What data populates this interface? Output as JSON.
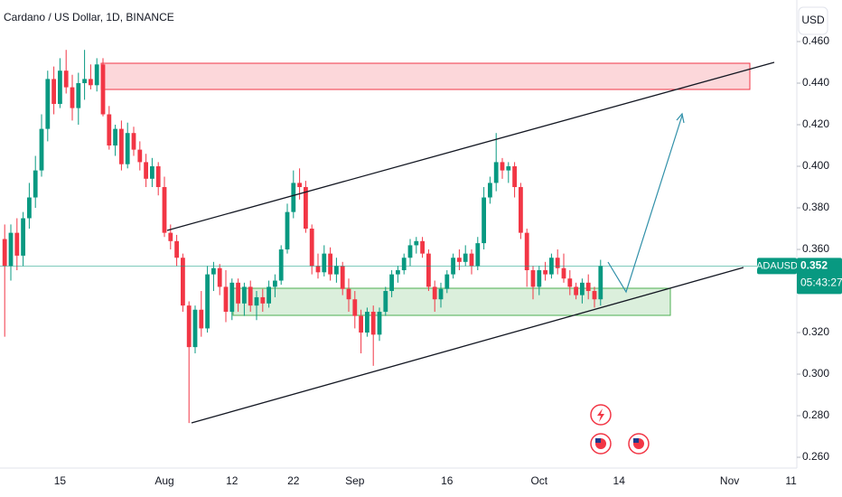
{
  "chart_data": {
    "type": "candlestick",
    "title": "Cardano / US Dollar, 1D, BINANCE",
    "currency": "USD",
    "countdown": "05:43:27",
    "categories": [
      null,
      null,
      null,
      null,
      null,
      null,
      null,
      null,
      null,
      "15",
      null,
      null,
      null,
      null,
      null,
      null,
      null,
      null,
      null,
      null,
      null,
      null,
      null,
      null,
      null,
      null,
      "Aug",
      null,
      null,
      null,
      null,
      null,
      null,
      null,
      null,
      null,
      null,
      "12",
      null,
      null,
      null,
      null,
      null,
      null,
      null,
      null,
      null,
      "22",
      null,
      null,
      null,
      null,
      null,
      null,
      null,
      null,
      null,
      "Sep",
      null,
      null,
      null,
      null,
      null,
      null,
      null,
      null,
      null,
      null,
      null,
      null,
      null,
      null,
      "16",
      null,
      null,
      null,
      null,
      null,
      null,
      null,
      null,
      null,
      null,
      null,
      null,
      null,
      null,
      "Oct",
      null,
      null,
      null,
      null,
      null,
      null,
      null,
      null,
      null,
      null,
      null,
      null,
      "14",
      null,
      null,
      null,
      null,
      null,
      null,
      null,
      null,
      null,
      null,
      null,
      null,
      null,
      null,
      null,
      null,
      null,
      "Nov",
      null,
      null,
      null,
      null,
      null,
      null,
      null,
      null,
      null,
      "11",
      null
    ],
    "series": [
      {
        "name": "ADAUSD",
        "up_color": "#089981",
        "down_color": "#f23645",
        "open": [
          0.365,
          0.352,
          0.368,
          0.357,
          0.375,
          0.385,
          0.398,
          0.418,
          0.442,
          0.43,
          0.446,
          0.438,
          0.428,
          0.44,
          0.442,
          0.439,
          0.449,
          0.425,
          0.41,
          0.418,
          0.401,
          0.416,
          0.408,
          0.402,
          0.394,
          0.4,
          0.39,
          0.368,
          0.364,
          0.356,
          0.333,
          0.313,
          0.331,
          0.322,
          0.348,
          0.351,
          0.342,
          0.33,
          0.344,
          0.334,
          0.342,
          0.333,
          0.337,
          0.334,
          0.342,
          0.345,
          0.36,
          0.378,
          0.392,
          0.39,
          0.37,
          0.352,
          0.349,
          0.358,
          0.348,
          0.352,
          0.341,
          0.336,
          0.328,
          0.32,
          0.33,
          0.319,
          0.33,
          0.34,
          0.348,
          0.35,
          0.356,
          0.362,
          0.364,
          0.358,
          0.342,
          0.336,
          0.341,
          0.348,
          0.356,
          0.354,
          0.358,
          0.352,
          0.363,
          0.385,
          0.392,
          0.402,
          0.398,
          0.4,
          0.39,
          0.368,
          0.35,
          0.342,
          0.35,
          0.348,
          0.356,
          0.351,
          0.346,
          0.342,
          0.338,
          0.344,
          0.34,
          0.336,
          null,
          null,
          null,
          null,
          null,
          null,
          null,
          null,
          null,
          null,
          null,
          null,
          null,
          null,
          null,
          null,
          null,
          null,
          null,
          null,
          null,
          null,
          null,
          null,
          null,
          null,
          null,
          null,
          null,
          null,
          null,
          null
        ],
        "high": [
          0.372,
          0.372,
          0.375,
          0.378,
          0.392,
          0.405,
          0.425,
          0.446,
          0.448,
          0.452,
          0.456,
          0.444,
          0.445,
          0.456,
          0.449,
          0.452,
          0.452,
          0.429,
          0.42,
          0.422,
          0.421,
          0.419,
          0.412,
          0.406,
          0.404,
          0.402,
          0.395,
          0.372,
          0.367,
          0.358,
          0.335,
          0.333,
          0.34,
          0.352,
          0.354,
          0.353,
          0.35,
          0.346,
          0.346,
          0.344,
          0.345,
          0.34,
          0.341,
          0.345,
          0.348,
          0.362,
          0.382,
          0.398,
          0.399,
          0.393,
          0.372,
          0.358,
          0.362,
          0.361,
          0.356,
          0.354,
          0.346,
          0.34,
          0.331,
          0.332,
          0.333,
          0.332,
          0.342,
          0.35,
          0.352,
          0.358,
          0.365,
          0.366,
          0.366,
          0.36,
          0.345,
          0.344,
          0.35,
          0.358,
          0.36,
          0.362,
          0.36,
          0.366,
          0.39,
          0.395,
          0.416,
          0.404,
          0.402,
          0.402,
          0.392,
          0.37,
          0.352,
          0.352,
          0.354,
          0.358,
          0.36,
          0.358,
          0.35,
          0.344,
          0.346,
          0.348,
          0.342,
          0.355,
          null,
          null,
          null,
          null,
          null,
          null,
          null,
          null,
          null,
          null,
          null,
          null,
          null,
          null,
          null,
          null,
          null,
          null,
          null,
          null,
          null,
          null,
          null,
          null,
          null,
          null,
          null,
          null,
          null,
          null,
          null,
          null
        ],
        "low": [
          0.318,
          0.345,
          0.35,
          0.352,
          0.37,
          0.38,
          0.395,
          0.412,
          0.425,
          0.428,
          0.435,
          0.422,
          0.42,
          0.432,
          0.437,
          0.436,
          0.424,
          0.408,
          0.405,
          0.398,
          0.399,
          0.405,
          0.398,
          0.39,
          0.39,
          0.386,
          0.366,
          0.36,
          0.352,
          0.33,
          0.2765,
          0.31,
          0.318,
          0.32,
          0.34,
          0.338,
          0.325,
          0.326,
          0.33,
          0.328,
          0.33,
          0.326,
          0.33,
          0.332,
          0.337,
          0.343,
          0.358,
          0.375,
          0.384,
          0.368,
          0.348,
          0.346,
          0.347,
          0.345,
          0.344,
          0.338,
          0.33,
          0.322,
          0.31,
          0.318,
          0.304,
          0.316,
          0.328,
          0.337,
          0.344,
          0.348,
          0.352,
          0.358,
          0.356,
          0.34,
          0.33,
          0.332,
          0.339,
          0.346,
          0.35,
          0.352,
          0.348,
          0.35,
          0.36,
          0.382,
          0.388,
          0.394,
          0.392,
          0.385,
          0.365,
          0.342,
          0.336,
          0.338,
          0.345,
          0.346,
          0.348,
          0.344,
          0.338,
          0.336,
          0.334,
          0.336,
          0.332,
          0.333,
          null,
          null,
          null,
          null,
          null,
          null,
          null,
          null,
          null,
          null,
          null,
          null,
          null,
          null,
          null,
          null,
          null,
          null,
          null,
          null,
          null,
          null,
          null,
          null,
          null,
          null,
          null,
          null,
          null,
          null,
          null,
          null
        ],
        "close": [
          0.352,
          0.368,
          0.357,
          0.375,
          0.385,
          0.398,
          0.418,
          0.442,
          0.43,
          0.446,
          0.438,
          0.428,
          0.44,
          0.442,
          0.439,
          0.449,
          0.425,
          0.41,
          0.418,
          0.401,
          0.416,
          0.408,
          0.402,
          0.394,
          0.4,
          0.39,
          0.368,
          0.364,
          0.356,
          0.333,
          0.313,
          0.331,
          0.322,
          0.348,
          0.351,
          0.342,
          0.33,
          0.344,
          0.334,
          0.342,
          0.333,
          0.337,
          0.334,
          0.342,
          0.345,
          0.36,
          0.378,
          0.392,
          0.39,
          0.37,
          0.352,
          0.349,
          0.358,
          0.348,
          0.352,
          0.341,
          0.336,
          0.328,
          0.32,
          0.33,
          0.319,
          0.33,
          0.34,
          0.348,
          0.35,
          0.356,
          0.362,
          0.364,
          0.358,
          0.342,
          0.336,
          0.341,
          0.348,
          0.356,
          0.354,
          0.358,
          0.352,
          0.363,
          0.385,
          0.392,
          0.402,
          0.398,
          0.4,
          0.39,
          0.368,
          0.35,
          0.342,
          0.35,
          0.348,
          0.356,
          0.351,
          0.346,
          0.342,
          0.338,
          0.344,
          0.34,
          0.336,
          0.352,
          null,
          null,
          null,
          null,
          null,
          null,
          null,
          null,
          null,
          null,
          null,
          null,
          null,
          null,
          null,
          null,
          null,
          null,
          null,
          null,
          null,
          null,
          null,
          null,
          null,
          null,
          null,
          null,
          null,
          null,
          null,
          null
        ]
      }
    ],
    "ylim": [
      0.2548,
      0.48
    ],
    "yticks": [
      {
        "value": 0.46,
        "label": "0.460"
      },
      {
        "value": 0.44,
        "label": "0.440"
      },
      {
        "value": 0.42,
        "label": "0.420"
      },
      {
        "value": 0.4,
        "label": "0.400"
      },
      {
        "value": 0.38,
        "label": "0.380"
      },
      {
        "value": 0.36,
        "label": "0.360"
      },
      {
        "value": 0.34,
        "label": "0.340"
      },
      {
        "value": 0.32,
        "label": "0.320"
      },
      {
        "value": 0.3,
        "label": "0.300"
      },
      {
        "value": 0.28,
        "label": "0.280"
      },
      {
        "value": 0.26,
        "label": "0.260"
      }
    ],
    "grid": false
  }
}
